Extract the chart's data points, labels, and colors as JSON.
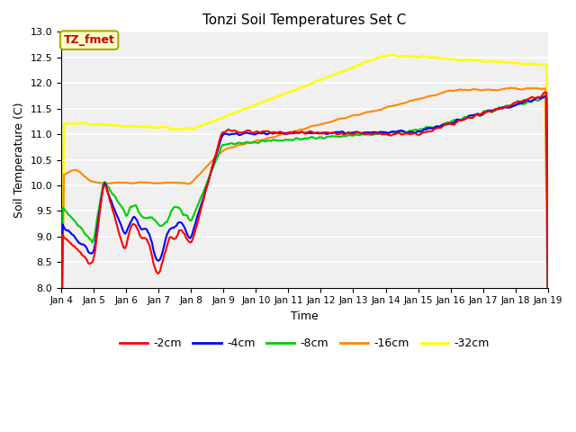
{
  "title": "Tonzi Soil Temperatures Set C",
  "xlabel": "Time",
  "ylabel": "Soil Temperature (C)",
  "ylim": [
    8.0,
    13.0
  ],
  "yticks": [
    8.0,
    8.5,
    9.0,
    9.5,
    10.0,
    10.5,
    11.0,
    11.5,
    12.0,
    12.5,
    13.0
  ],
  "bg_color": "#e8e8e8",
  "plot_bg": "#f0f0f0",
  "annotation_text": "TZ_fmet",
  "annotation_bg": "#ffffcc",
  "annotation_border": "#aaaa00",
  "annotation_text_color": "#cc0000",
  "legend_labels": [
    "-2cm",
    "-4cm",
    "-8cm",
    "-16cm",
    "-32cm"
  ],
  "line_colors": [
    "#ff0000",
    "#0000ff",
    "#00cc00",
    "#ff8800",
    "#ffff00"
  ],
  "line_widths": [
    1.5,
    1.5,
    1.5,
    1.5,
    1.8
  ],
  "xtick_labels": [
    "Jan 4",
    "Jan 5",
    "Jan 6",
    "Jan 7",
    "Jan 8",
    "Jan 9",
    "Jan 10",
    "Jan 11",
    "Jan 12",
    "Jan 13",
    "Jan 14",
    "Jan 15",
    "Jan 16",
    "Jan 17",
    "Jan 18",
    "Jan 19"
  ]
}
